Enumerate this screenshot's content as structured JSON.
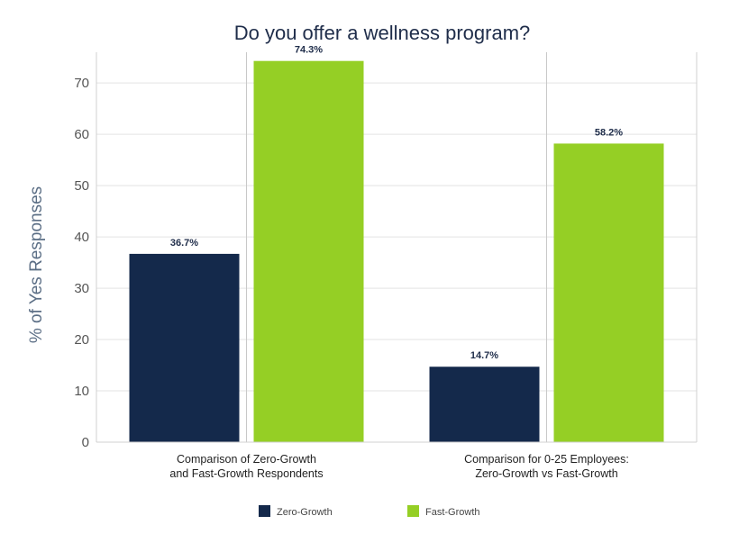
{
  "chart_data": {
    "type": "bar",
    "title": "Do you offer a wellness program?",
    "xlabel": "",
    "ylabel": "% of Yes Responses",
    "ylim": [
      0,
      76
    ],
    "yticks": [
      0,
      10,
      20,
      30,
      40,
      50,
      60,
      70
    ],
    "grid": true,
    "legend_position": "bottom",
    "categories": [
      [
        "Comparison of Zero-Growth",
        "and Fast-Growth Respondents"
      ],
      [
        "Comparison for 0-25 Employees:",
        "Zero-Growth vs Fast-Growth"
      ]
    ],
    "series": [
      {
        "name": "Zero-Growth",
        "color": "#14294b",
        "values": [
          36.7,
          14.7
        ],
        "labels": [
          "36.7%",
          "14.7%"
        ]
      },
      {
        "name": "Fast-Growth",
        "color": "#95cf25",
        "values": [
          74.3,
          58.2
        ],
        "labels": [
          "74.3%",
          "58.2%"
        ]
      }
    ]
  }
}
